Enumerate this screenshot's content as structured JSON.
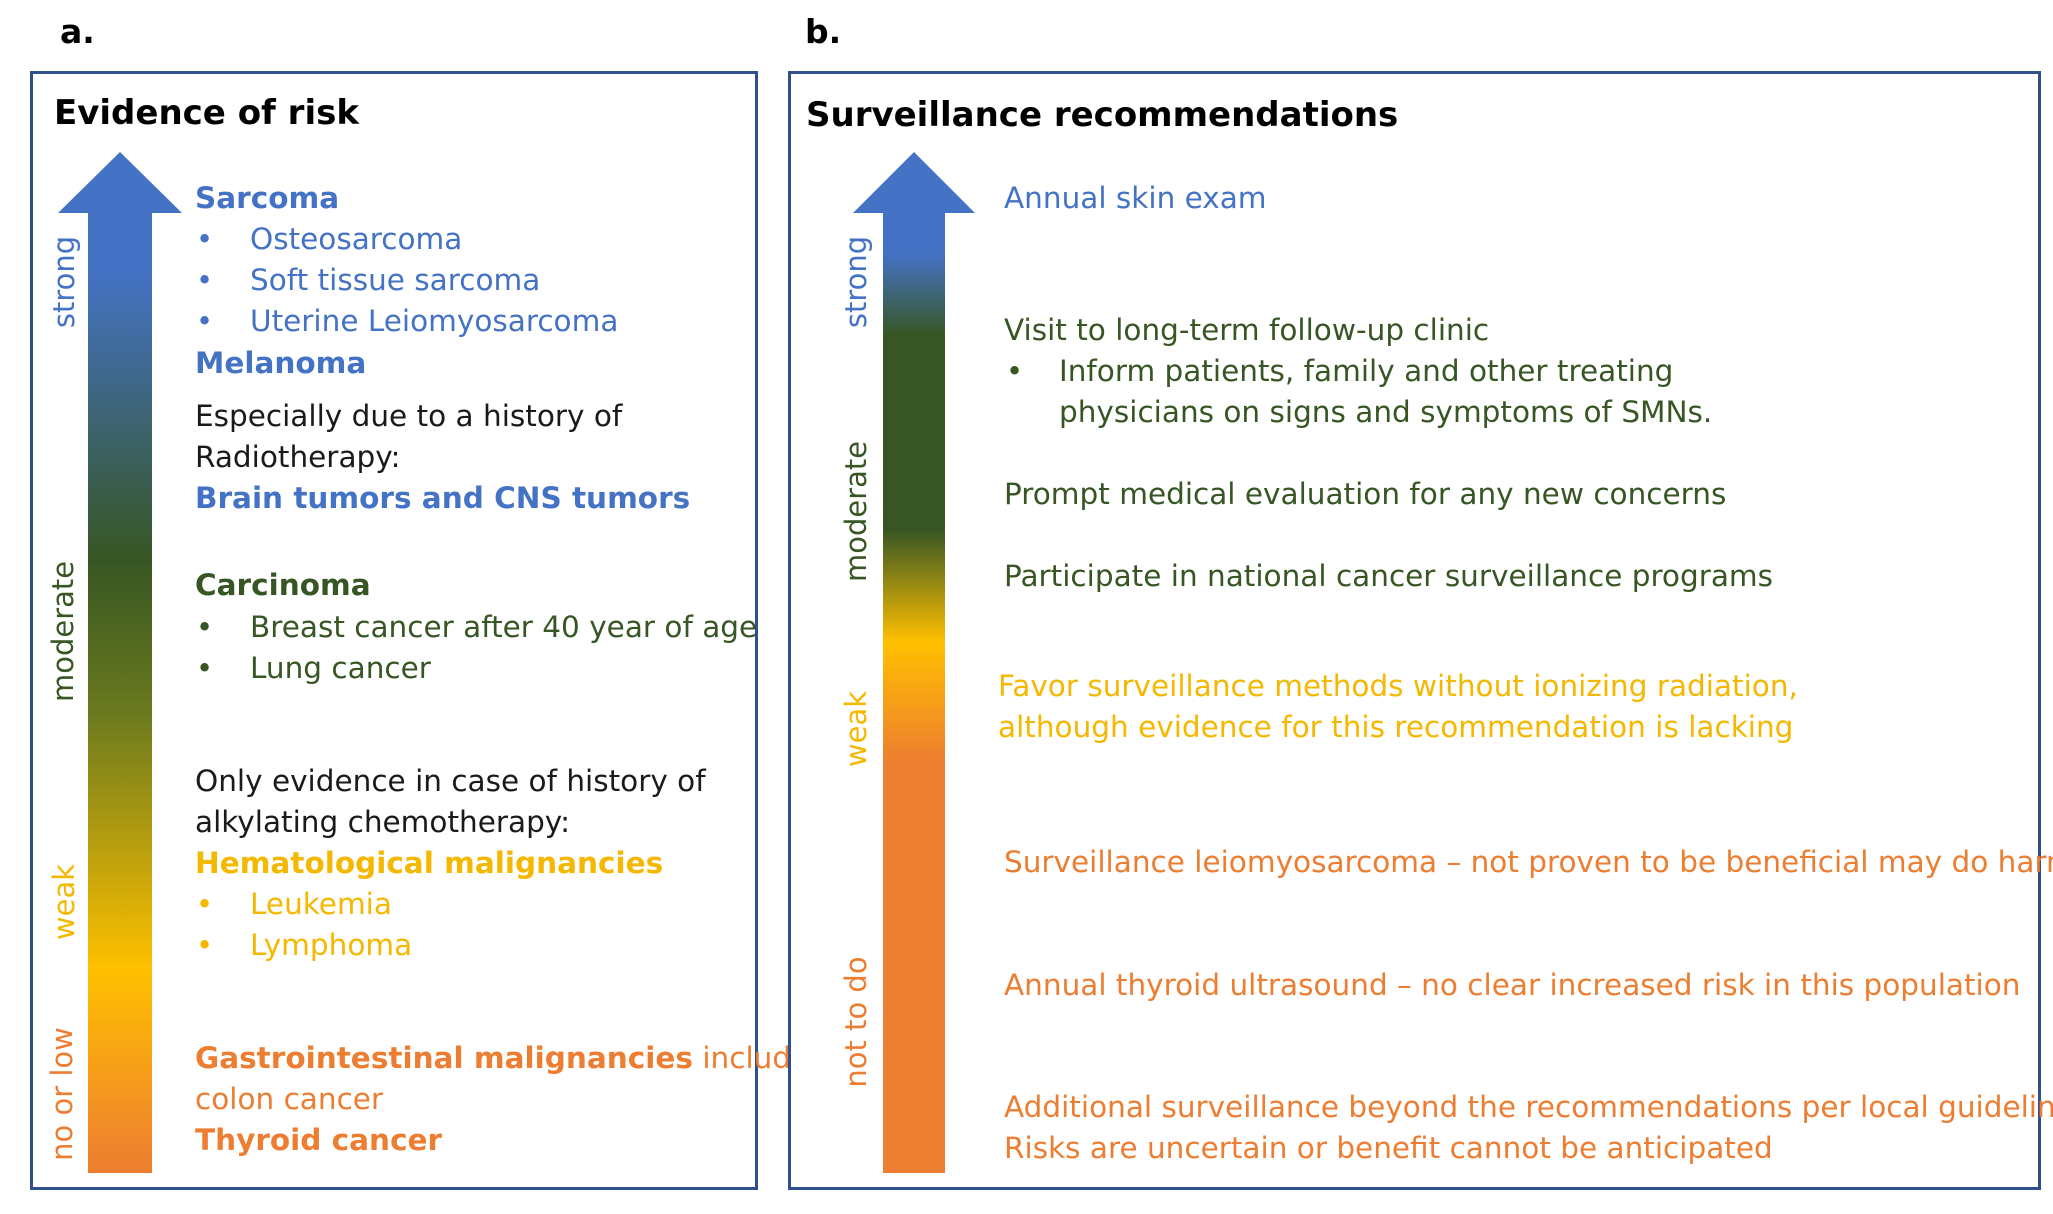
{
  "panel_a": {
    "label": "a.",
    "title": "Evidence of risk",
    "scale": {
      "strong": "strong",
      "moderate": "moderate",
      "weak": "weak",
      "low": "no or low"
    },
    "sarcoma": {
      "heading": "Sarcoma",
      "items": [
        "Osteosarcoma",
        "Soft tissue sarcoma",
        "Uterine Leiomyosarcoma"
      ]
    },
    "melanoma": "Melanoma",
    "radiotherapy_line1": "Especially due to a history of",
    "radiotherapy_line2": "Radiotherapy:",
    "brain": "Brain tumors and CNS tumors",
    "carcinoma": {
      "heading": "Carcinoma",
      "items": [
        "Breast cancer after 40 year of age",
        "Lung cancer"
      ]
    },
    "chemo_line1": "Only evidence in case of history of",
    "chemo_line2": "alkylating chemotherapy:",
    "hematological": {
      "heading": "Hematological malignancies",
      "items": [
        "Leukemia",
        "Lymphoma"
      ]
    },
    "gi_bold": "Gastrointestinal malignancies",
    "gi_rest": " including",
    "gi_line2": "colon cancer",
    "thyroid": "Thyroid cancer",
    "bullet": "•"
  },
  "panel_b": {
    "label": "b.",
    "title": "Surveillance recommendations",
    "scale": {
      "strong": "strong",
      "moderate": "moderate",
      "weak": "weak",
      "not": "not to do"
    },
    "skin": "Annual skin exam",
    "visit": "Visit to long-term follow-up clinic",
    "inform_line1": "Inform patients, family and other treating",
    "inform_line2": "physicians on signs and symptoms of SMNs.",
    "prompt": "Prompt medical evaluation for any new concerns",
    "participate": "Participate in national cancer surveillance programs",
    "favor_line1": "Favor surveillance methods without ionizing radiation,",
    "favor_line2": "although evidence for this recommendation is lacking",
    "leio": "Surveillance leiomyosarcoma – not proven to be beneficial may do harm",
    "thyroid_us": "Annual thyroid ultrasound – no clear increased risk in this population",
    "additional_line1": "Additional surveillance beyond the recommendations per local guideline;",
    "additional_line2": "Risks are uncertain or benefit cannot be anticipated",
    "bullet": "•"
  },
  "colors": {
    "blue": "#4472c4",
    "green": "#375623",
    "yellow": "#ffc000",
    "orange": "#ed7d31",
    "border": "#2f4f8f"
  }
}
